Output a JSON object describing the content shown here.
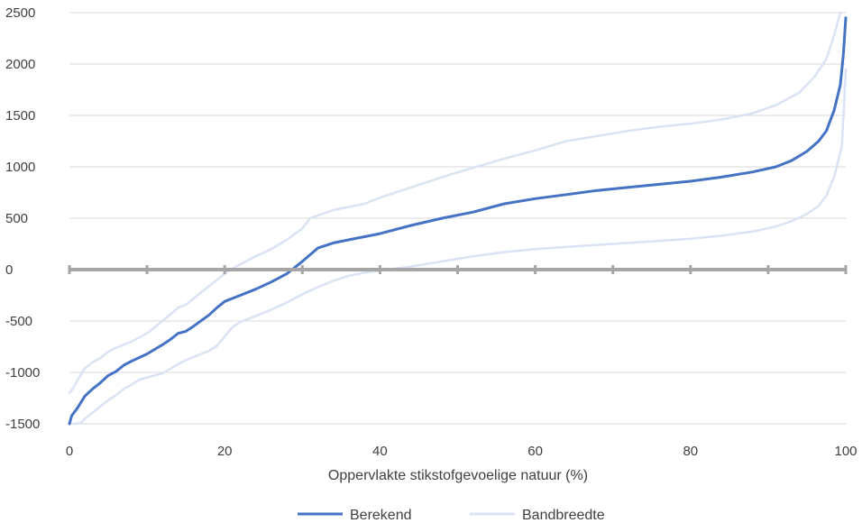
{
  "chart_data": {
    "type": "line",
    "title": "",
    "xlabel": "Oppervlakte stikstofgevoelige natuur (%)",
    "ylabel": "",
    "xlim": [
      0,
      100
    ],
    "ylim": [
      -1500,
      2500
    ],
    "x_ticks": [
      0,
      20,
      40,
      60,
      80,
      100
    ],
    "y_ticks": [
      -1500,
      -1000,
      -500,
      0,
      500,
      1000,
      1500,
      2000,
      2500
    ],
    "grid": "horizontal",
    "legend_position": "bottom",
    "series": [
      {
        "name": "Berekend",
        "color": "#4472C4",
        "points": [
          [
            0,
            -1500
          ],
          [
            0.3,
            -1420
          ],
          [
            1,
            -1350
          ],
          [
            2,
            -1230
          ],
          [
            3,
            -1160
          ],
          [
            4,
            -1100
          ],
          [
            5,
            -1030
          ],
          [
            6,
            -990
          ],
          [
            7,
            -930
          ],
          [
            8,
            -890
          ],
          [
            10,
            -820
          ],
          [
            12,
            -730
          ],
          [
            13,
            -680
          ],
          [
            14,
            -620
          ],
          [
            15,
            -600
          ],
          [
            16,
            -550
          ],
          [
            18,
            -440
          ],
          [
            19,
            -370
          ],
          [
            20,
            -310
          ],
          [
            22,
            -250
          ],
          [
            24,
            -190
          ],
          [
            26,
            -120
          ],
          [
            28,
            -40
          ],
          [
            30,
            80
          ],
          [
            32,
            210
          ],
          [
            34,
            260
          ],
          [
            36,
            290
          ],
          [
            40,
            350
          ],
          [
            44,
            430
          ],
          [
            48,
            500
          ],
          [
            52,
            560
          ],
          [
            56,
            640
          ],
          [
            60,
            690
          ],
          [
            64,
            730
          ],
          [
            68,
            770
          ],
          [
            72,
            800
          ],
          [
            76,
            830
          ],
          [
            80,
            860
          ],
          [
            84,
            900
          ],
          [
            88,
            950
          ],
          [
            91,
            1000
          ],
          [
            93,
            1060
          ],
          [
            95,
            1150
          ],
          [
            96.5,
            1250
          ],
          [
            97.5,
            1350
          ],
          [
            98.5,
            1550
          ],
          [
            99.3,
            1800
          ],
          [
            99.7,
            2100
          ],
          [
            100,
            2450
          ]
        ]
      },
      {
        "name": "Bandbreedte",
        "color": "#DAE3F3",
        "points": [
          [
            0,
            -1200
          ],
          [
            0.5,
            -1150
          ],
          [
            1,
            -1080
          ],
          [
            2,
            -960
          ],
          [
            3,
            -900
          ],
          [
            4,
            -860
          ],
          [
            5,
            -800
          ],
          [
            6,
            -760
          ],
          [
            8,
            -700
          ],
          [
            10,
            -620
          ],
          [
            12,
            -500
          ],
          [
            14,
            -370
          ],
          [
            15,
            -340
          ],
          [
            16,
            -280
          ],
          [
            18,
            -160
          ],
          [
            20,
            -40
          ],
          [
            21,
            10
          ],
          [
            24,
            130
          ],
          [
            26,
            200
          ],
          [
            28,
            290
          ],
          [
            30,
            400
          ],
          [
            31,
            500
          ],
          [
            34,
            580
          ],
          [
            38,
            640
          ],
          [
            40,
            700
          ],
          [
            44,
            800
          ],
          [
            48,
            900
          ],
          [
            52,
            990
          ],
          [
            56,
            1080
          ],
          [
            60,
            1160
          ],
          [
            64,
            1250
          ],
          [
            68,
            1300
          ],
          [
            72,
            1350
          ],
          [
            76,
            1390
          ],
          [
            80,
            1420
          ],
          [
            84,
            1460
          ],
          [
            88,
            1520
          ],
          [
            91,
            1600
          ],
          [
            94,
            1720
          ],
          [
            96,
            1880
          ],
          [
            97.5,
            2050
          ],
          [
            98.5,
            2280
          ],
          [
            99.3,
            2500
          ]
        ]
      },
      {
        "name": "",
        "color": "#DAE3F3",
        "points": [
          [
            0,
            -1500
          ],
          [
            0.8,
            -1500
          ],
          [
            1.5,
            -1490
          ],
          [
            2,
            -1450
          ],
          [
            3,
            -1390
          ],
          [
            4,
            -1330
          ],
          [
            5,
            -1270
          ],
          [
            6,
            -1220
          ],
          [
            7,
            -1160
          ],
          [
            8,
            -1120
          ],
          [
            9,
            -1070
          ],
          [
            10,
            -1050
          ],
          [
            12,
            -1010
          ],
          [
            14,
            -920
          ],
          [
            15,
            -880
          ],
          [
            16,
            -850
          ],
          [
            18,
            -790
          ],
          [
            19,
            -740
          ],
          [
            20,
            -650
          ],
          [
            21,
            -560
          ],
          [
            22,
            -510
          ],
          [
            24,
            -450
          ],
          [
            26,
            -390
          ],
          [
            28,
            -320
          ],
          [
            30,
            -240
          ],
          [
            32,
            -170
          ],
          [
            34,
            -110
          ],
          [
            36,
            -60
          ],
          [
            38,
            -30
          ],
          [
            40,
            -10
          ],
          [
            44,
            30
          ],
          [
            48,
            80
          ],
          [
            52,
            130
          ],
          [
            56,
            170
          ],
          [
            60,
            200
          ],
          [
            64,
            220
          ],
          [
            68,
            240
          ],
          [
            72,
            260
          ],
          [
            76,
            280
          ],
          [
            80,
            300
          ],
          [
            84,
            330
          ],
          [
            88,
            370
          ],
          [
            91,
            420
          ],
          [
            93,
            470
          ],
          [
            95,
            540
          ],
          [
            96.5,
            620
          ],
          [
            97.5,
            720
          ],
          [
            98.5,
            900
          ],
          [
            99.5,
            1200
          ],
          [
            100,
            1950
          ]
        ]
      }
    ]
  }
}
